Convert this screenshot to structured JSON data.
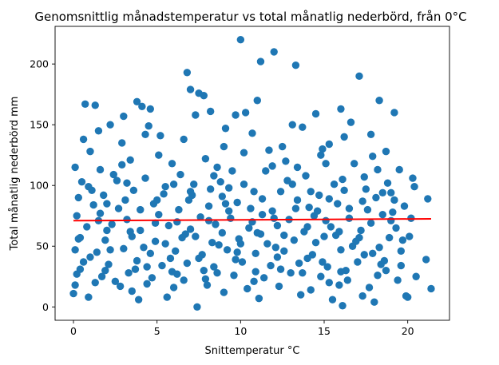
{
  "chart_data": {
    "type": "scatter",
    "title": "Genomsnittlig månadstemperatur vs total månatlig nederbörd, från 0°C",
    "xlabel": "Snittemperatur °C",
    "ylabel": "Total månatlig nederbörd mm",
    "xlim": [
      -1.1,
      22.5
    ],
    "ylim": [
      -11,
      231
    ],
    "xticks": [
      0,
      5,
      10,
      15,
      20
    ],
    "yticks": [
      0,
      50,
      100,
      150,
      200
    ],
    "grid": false,
    "point_color": "#1f77b4",
    "trend_color": "#ff0000",
    "trend_line": {
      "x": [
        0,
        21.4
      ],
      "y": [
        71,
        72.5
      ]
    },
    "points": [
      [
        10.0,
        220
      ],
      [
        12.0,
        210
      ],
      [
        11.2,
        202
      ],
      [
        13.3,
        199
      ],
      [
        6.8,
        193
      ],
      [
        17.1,
        190
      ],
      [
        7.0,
        179
      ],
      [
        7.5,
        176
      ],
      [
        7.8,
        174
      ],
      [
        11.0,
        170
      ],
      [
        3.8,
        169
      ],
      [
        18.3,
        170
      ],
      [
        0.7,
        167
      ],
      [
        1.3,
        166
      ],
      [
        4.1,
        165
      ],
      [
        4.6,
        163
      ],
      [
        8.2,
        161
      ],
      [
        10.3,
        160
      ],
      [
        14.5,
        159
      ],
      [
        16.0,
        163
      ],
      [
        19.2,
        160
      ],
      [
        3.0,
        157
      ],
      [
        7.3,
        158
      ],
      [
        9.7,
        158
      ],
      [
        13.1,
        150
      ],
      [
        16.6,
        152
      ],
      [
        2.2,
        150
      ],
      [
        4.5,
        149
      ],
      [
        9.1,
        147
      ],
      [
        10.7,
        143
      ],
      [
        13.7,
        148
      ],
      [
        17.8,
        142
      ],
      [
        1.5,
        145
      ],
      [
        5.2,
        141
      ],
      [
        12.5,
        132
      ],
      [
        15.3,
        134
      ],
      [
        1.0,
        128
      ],
      [
        2.9,
        135
      ],
      [
        6.6,
        138
      ],
      [
        10.2,
        127
      ],
      [
        14.9,
        130
      ],
      [
        18.7,
        128
      ],
      [
        0.1,
        115
      ],
      [
        3.4,
        121
      ],
      [
        5.9,
        118
      ],
      [
        8.6,
        115
      ],
      [
        11.5,
        112
      ],
      [
        16.8,
        118
      ],
      [
        19.5,
        113
      ],
      [
        0.5,
        103
      ],
      [
        2.4,
        109
      ],
      [
        4.3,
        106
      ],
      [
        7.2,
        101
      ],
      [
        9.3,
        98
      ],
      [
        12.8,
        104
      ],
      [
        15.6,
        101
      ],
      [
        17.4,
        107
      ],
      [
        20.4,
        99
      ],
      [
        21.2,
        89
      ],
      [
        0.3,
        90
      ],
      [
        1.8,
        92
      ],
      [
        3.6,
        96
      ],
      [
        5.4,
        93
      ],
      [
        6.9,
        88
      ],
      [
        8.9,
        91
      ],
      [
        10.8,
        95
      ],
      [
        13.4,
        88
      ],
      [
        14.7,
        92
      ],
      [
        16.2,
        96
      ],
      [
        18.1,
        90
      ],
      [
        19.0,
        94
      ],
      [
        1.2,
        84
      ],
      [
        2.7,
        81
      ],
      [
        4.8,
        85
      ],
      [
        6.3,
        80
      ],
      [
        8.1,
        83
      ],
      [
        9.8,
        86
      ],
      [
        11.9,
        79
      ],
      [
        14.1,
        82
      ],
      [
        15.8,
        85
      ],
      [
        17.6,
        80
      ],
      [
        19.8,
        83
      ],
      [
        0.2,
        75
      ],
      [
        1.6,
        77
      ],
      [
        3.2,
        72
      ],
      [
        5.1,
        76
      ],
      [
        7.6,
        74
      ],
      [
        9.4,
        73
      ],
      [
        11.3,
        76
      ],
      [
        12.9,
        72
      ],
      [
        14.4,
        75
      ],
      [
        16.5,
        73
      ],
      [
        18.5,
        76
      ],
      [
        0.8,
        66
      ],
      [
        2.3,
        68
      ],
      [
        4.0,
        63
      ],
      [
        5.7,
        67
      ],
      [
        7.0,
        64
      ],
      [
        8.5,
        68
      ],
      [
        10.5,
        65
      ],
      [
        12.2,
        67
      ],
      [
        13.8,
        62
      ],
      [
        15.4,
        66
      ],
      [
        17.2,
        63
      ],
      [
        19.3,
        65
      ],
      [
        0.4,
        57
      ],
      [
        1.9,
        55
      ],
      [
        3.5,
        58
      ],
      [
        4.9,
        54
      ],
      [
        6.5,
        57
      ],
      [
        8.3,
        53
      ],
      [
        9.9,
        56
      ],
      [
        11.6,
        52
      ],
      [
        13.2,
        55
      ],
      [
        15.0,
        58
      ],
      [
        16.9,
        54
      ],
      [
        18.9,
        57
      ],
      [
        0.1,
        47
      ],
      [
        1.4,
        45
      ],
      [
        3.0,
        48
      ],
      [
        4.6,
        44
      ],
      [
        6.1,
        46
      ],
      [
        7.7,
        43
      ],
      [
        9.2,
        47
      ],
      [
        10.9,
        44
      ],
      [
        12.6,
        46
      ],
      [
        14.3,
        43
      ],
      [
        16.0,
        47
      ],
      [
        17.9,
        44
      ],
      [
        19.6,
        46
      ],
      [
        0.6,
        37
      ],
      [
        2.1,
        35
      ],
      [
        3.8,
        38
      ],
      [
        5.3,
        34
      ],
      [
        6.8,
        36
      ],
      [
        8.4,
        33
      ],
      [
        10.1,
        37
      ],
      [
        11.8,
        34
      ],
      [
        13.5,
        36
      ],
      [
        15.2,
        33
      ],
      [
        17.0,
        37
      ],
      [
        18.4,
        35
      ],
      [
        21.1,
        39
      ],
      [
        0.2,
        27
      ],
      [
        1.7,
        25
      ],
      [
        3.3,
        28
      ],
      [
        4.7,
        24
      ],
      [
        6.2,
        27
      ],
      [
        7.9,
        23
      ],
      [
        9.6,
        26
      ],
      [
        11.4,
        24
      ],
      [
        13.0,
        28
      ],
      [
        14.8,
        25
      ],
      [
        16.4,
        22
      ],
      [
        18.2,
        26
      ],
      [
        20.5,
        25
      ],
      [
        0.1,
        18
      ],
      [
        1.3,
        20
      ],
      [
        2.8,
        17
      ],
      [
        4.4,
        19
      ],
      [
        6.0,
        16
      ],
      [
        8.0,
        18
      ],
      [
        10.4,
        15
      ],
      [
        12.3,
        17
      ],
      [
        14.2,
        14
      ],
      [
        15.9,
        18
      ],
      [
        17.7,
        16
      ],
      [
        19.9,
        9
      ],
      [
        21.4,
        15
      ],
      [
        0.0,
        11
      ],
      [
        0.9,
        8
      ],
      [
        3.9,
        6
      ],
      [
        5.6,
        8
      ],
      [
        7.4,
        0
      ],
      [
        9.0,
        12
      ],
      [
        11.1,
        7
      ],
      [
        13.6,
        10
      ],
      [
        15.5,
        6
      ],
      [
        16.1,
        1
      ],
      [
        17.3,
        9
      ],
      [
        18.0,
        4
      ],
      [
        20.0,
        8
      ],
      [
        2.6,
        104
      ],
      [
        6.4,
        109
      ],
      [
        9.5,
        112
      ],
      [
        12.7,
        120
      ],
      [
        15.1,
        118
      ],
      [
        18.8,
        102
      ],
      [
        1.1,
        96
      ],
      [
        5.5,
        99
      ],
      [
        8.8,
        103
      ],
      [
        13.9,
        108
      ],
      [
        17.5,
        97
      ],
      [
        3.1,
        88
      ],
      [
        7.1,
        92
      ],
      [
        10.6,
        81
      ],
      [
        14.6,
        79
      ],
      [
        19.1,
        78
      ],
      [
        2.0,
        63
      ],
      [
        6.7,
        60
      ],
      [
        11.0,
        61
      ],
      [
        15.7,
        59
      ],
      [
        20.1,
        58
      ],
      [
        4.2,
        49
      ],
      [
        8.7,
        51
      ],
      [
        12.1,
        49
      ],
      [
        16.7,
        50
      ],
      [
        1.0,
        41
      ],
      [
        5.8,
        40
      ],
      [
        9.7,
        39
      ],
      [
        14.0,
        40
      ],
      [
        18.6,
        38
      ],
      [
        3.7,
        31
      ],
      [
        7.8,
        30
      ],
      [
        12.4,
        31
      ],
      [
        16.3,
        30
      ],
      [
        2.5,
        21
      ],
      [
        6.6,
        22
      ],
      [
        10.8,
        21
      ],
      [
        15.3,
        20
      ],
      [
        19.4,
        22
      ],
      [
        0.6,
        138
      ],
      [
        4.3,
        142
      ],
      [
        9.0,
        132
      ],
      [
        11.7,
        129
      ],
      [
        16.2,
        140
      ],
      [
        2.9,
        117
      ],
      [
        7.9,
        122
      ],
      [
        13.4,
        115
      ],
      [
        17.9,
        124
      ],
      [
        0.3,
        56
      ],
      [
        1.5,
        71
      ],
      [
        2.2,
        47
      ],
      [
        3.4,
        62
      ],
      [
        4.0,
        80
      ],
      [
        4.9,
        69
      ],
      [
        5.5,
        52
      ],
      [
        6.2,
        70
      ],
      [
        7.3,
        58
      ],
      [
        8.1,
        71
      ],
      [
        8.9,
        61
      ],
      [
        9.3,
        79
      ],
      [
        10.0,
        52
      ],
      [
        10.7,
        70
      ],
      [
        11.2,
        60
      ],
      [
        12.0,
        73
      ],
      [
        12.6,
        59
      ],
      [
        13.3,
        81
      ],
      [
        14.0,
        66
      ],
      [
        14.5,
        53
      ],
      [
        15.1,
        71
      ],
      [
        15.9,
        62
      ],
      [
        16.5,
        81
      ],
      [
        17.1,
        57
      ],
      [
        17.8,
        69
      ],
      [
        18.3,
        49
      ],
      [
        19.0,
        71
      ],
      [
        19.7,
        55
      ],
      [
        20.2,
        73
      ],
      [
        0.9,
        99
      ],
      [
        2.0,
        85
      ],
      [
        3.2,
        102
      ],
      [
        5.0,
        88
      ],
      [
        6.0,
        101
      ],
      [
        7.0,
        95
      ],
      [
        8.2,
        97
      ],
      [
        9.1,
        85
      ],
      [
        10.2,
        101
      ],
      [
        11.3,
        89
      ],
      [
        12.4,
        95
      ],
      [
        13.1,
        101
      ],
      [
        14.2,
        95
      ],
      [
        15.3,
        89
      ],
      [
        16.1,
        105
      ],
      [
        17.3,
        87
      ],
      [
        18.5,
        94
      ],
      [
        19.2,
        88
      ],
      [
        0.4,
        31
      ],
      [
        1.9,
        30
      ],
      [
        3.5,
        13
      ],
      [
        4.4,
        33
      ],
      [
        5.9,
        29
      ],
      [
        7.5,
        40
      ],
      [
        8.6,
        28
      ],
      [
        9.8,
        45
      ],
      [
        10.9,
        29
      ],
      [
        12.2,
        41
      ],
      [
        13.7,
        28
      ],
      [
        14.9,
        37
      ],
      [
        16.0,
        29
      ],
      [
        17.4,
        43
      ],
      [
        18.7,
        30
      ],
      [
        19.6,
        34
      ],
      [
        1.6,
        113
      ],
      [
        5.1,
        125
      ],
      [
        8.4,
        108
      ],
      [
        11.9,
        116
      ],
      [
        14.8,
        125
      ],
      [
        18.2,
        113
      ],
      [
        20.3,
        106
      ]
    ]
  }
}
